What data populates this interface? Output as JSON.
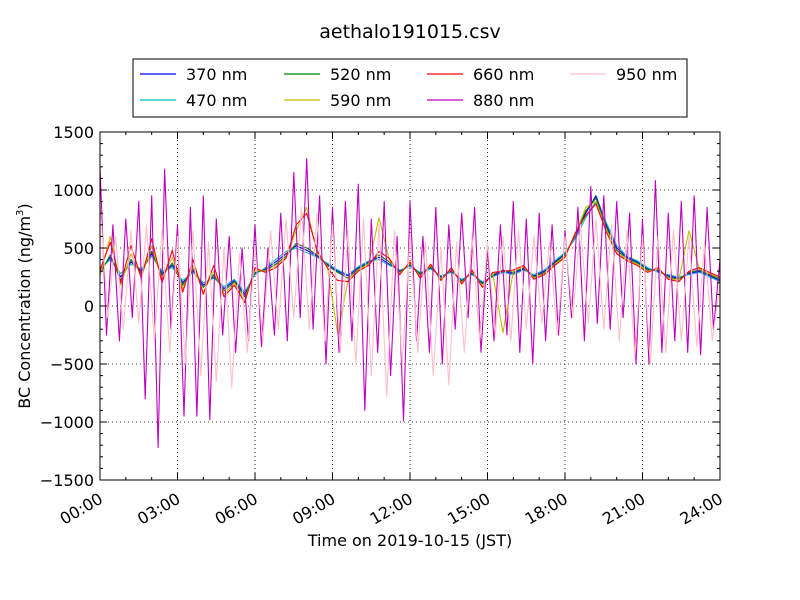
{
  "chart_data": {
    "type": "line",
    "title": "aethalo191015.csv",
    "xlabel": "Time on 2019-10-15 (JST)",
    "ylabel": "BC Concentration (ng/m³)",
    "ylabel_main": "BC Concentration (ng/m",
    "ylabel_sup": "3",
    "ylabel_end": ")",
    "xlim_hours": [
      0,
      24
    ],
    "ylim": [
      -1500,
      1500
    ],
    "x_ticks": [
      {
        "hour": 0,
        "label": "00:00"
      },
      {
        "hour": 3,
        "label": "03:00"
      },
      {
        "hour": 6,
        "label": "06:00"
      },
      {
        "hour": 9,
        "label": "09:00"
      },
      {
        "hour": 12,
        "label": "12:00"
      },
      {
        "hour": 15,
        "label": "15:00"
      },
      {
        "hour": 18,
        "label": "18:00"
      },
      {
        "hour": 21,
        "label": "21:00"
      },
      {
        "hour": 24,
        "label": "24:00"
      }
    ],
    "y_ticks": [
      {
        "value": 1500,
        "label": "1500"
      },
      {
        "value": 1000,
        "label": "1000"
      },
      {
        "value": 500,
        "label": "500"
      },
      {
        "value": 0,
        "label": "0"
      },
      {
        "value": -500,
        "label": "−500"
      },
      {
        "value": -1000,
        "label": "−1000"
      },
      {
        "value": -1500,
        "label": "−1500"
      }
    ],
    "grid": true,
    "legend_position": "top",
    "series": [
      {
        "name": "370 nm",
        "color": "#0000ff",
        "x": [
          0.0,
          0.4,
          0.8,
          1.2,
          1.6,
          2.0,
          2.4,
          2.8,
          3.2,
          3.6,
          4.0,
          4.4,
          4.8,
          5.2,
          5.6,
          6.0,
          6.4,
          6.8,
          7.2,
          7.6,
          8.0,
          8.4,
          8.8,
          9.2,
          9.6,
          10.0,
          10.4,
          10.8,
          11.2,
          11.6,
          12.0,
          12.4,
          12.8,
          13.2,
          13.6,
          14.0,
          14.4,
          14.8,
          15.2,
          15.6,
          16.0,
          16.4,
          16.8,
          17.2,
          17.6,
          18.0,
          18.4,
          18.8,
          19.2,
          19.6,
          20.0,
          20.4,
          20.8,
          21.2,
          21.6,
          22.0,
          22.4,
          22.8,
          23.2,
          23.6,
          24.0
        ],
        "y": [
          300,
          420,
          250,
          380,
          300,
          450,
          280,
          350,
          200,
          300,
          180,
          250,
          150,
          220,
          100,
          280,
          320,
          380,
          450,
          520,
          480,
          430,
          360,
          300,
          260,
          330,
          380,
          420,
          360,
          300,
          350,
          280,
          330,
          250,
          300,
          220,
          280,
          200,
          260,
          300,
          280,
          320,
          260,
          300,
          380,
          450,
          600,
          800,
          950,
          700,
          500,
          420,
          380,
          320,
          300,
          260,
          240,
          280,
          300,
          260,
          220
        ]
      },
      {
        "name": "470 nm",
        "color": "#00bfbf",
        "x": [
          0.0,
          0.4,
          0.8,
          1.2,
          1.6,
          2.0,
          2.4,
          2.8,
          3.2,
          3.6,
          4.0,
          4.4,
          4.8,
          5.2,
          5.6,
          6.0,
          6.4,
          6.8,
          7.2,
          7.6,
          8.0,
          8.4,
          8.8,
          9.2,
          9.6,
          10.0,
          10.4,
          10.8,
          11.2,
          11.6,
          12.0,
          12.4,
          12.8,
          13.2,
          13.6,
          14.0,
          14.4,
          14.8,
          15.2,
          15.6,
          16.0,
          16.4,
          16.8,
          17.2,
          17.6,
          18.0,
          18.4,
          18.8,
          19.2,
          19.6,
          20.0,
          20.4,
          20.8,
          21.2,
          21.6,
          22.0,
          22.4,
          22.8,
          23.2,
          23.6,
          24.0
        ],
        "y": [
          320,
          400,
          280,
          360,
          320,
          430,
          300,
          330,
          220,
          290,
          200,
          240,
          170,
          230,
          120,
          270,
          330,
          400,
          470,
          500,
          460,
          420,
          370,
          310,
          270,
          340,
          390,
          400,
          350,
          310,
          340,
          290,
          320,
          260,
          290,
          230,
          270,
          210,
          250,
          290,
          270,
          310,
          270,
          310,
          390,
          460,
          580,
          760,
          900,
          720,
          520,
          430,
          390,
          330,
          290,
          270,
          250,
          270,
          290,
          250,
          210
        ]
      },
      {
        "name": "520 nm",
        "color": "#008000",
        "x": [
          0.0,
          0.4,
          0.8,
          1.2,
          1.6,
          2.0,
          2.4,
          2.8,
          3.2,
          3.6,
          4.0,
          4.4,
          4.8,
          5.2,
          5.6,
          6.0,
          6.4,
          6.8,
          7.2,
          7.6,
          8.0,
          8.4,
          8.8,
          9.2,
          9.6,
          10.0,
          10.4,
          10.8,
          11.2,
          11.6,
          12.0,
          12.4,
          12.8,
          13.2,
          13.6,
          14.0,
          14.4,
          14.8,
          15.2,
          15.6,
          16.0,
          16.4,
          16.8,
          17.2,
          17.6,
          18.0,
          18.4,
          18.8,
          19.2,
          19.6,
          20.0,
          20.4,
          20.8,
          21.2,
          21.6,
          22.0,
          22.4,
          22.8,
          23.2,
          23.6,
          24.0
        ],
        "y": [
          280,
          440,
          220,
          400,
          280,
          470,
          260,
          370,
          180,
          320,
          160,
          270,
          130,
          210,
          80,
          290,
          310,
          360,
          430,
          540,
          500,
          440,
          350,
          290,
          240,
          320,
          370,
          440,
          380,
          290,
          360,
          270,
          340,
          240,
          310,
          210,
          290,
          190,
          270,
          310,
          290,
          330,
          250,
          290,
          370,
          440,
          610,
          820,
          930,
          680,
          480,
          410,
          370,
          310,
          310,
          250,
          230,
          290,
          310,
          270,
          230
        ]
      },
      {
        "name": "590 nm",
        "color": "#bfbf00",
        "x": [
          0.0,
          0.4,
          0.8,
          1.2,
          1.6,
          2.0,
          2.4,
          2.8,
          3.2,
          3.6,
          4.0,
          4.4,
          4.8,
          5.2,
          5.6,
          6.0,
          6.4,
          6.8,
          7.2,
          7.6,
          8.0,
          8.4,
          8.8,
          9.2,
          9.6,
          10.0,
          10.4,
          10.8,
          11.2,
          11.6,
          12.0,
          12.4,
          12.8,
          13.2,
          13.6,
          14.0,
          14.4,
          14.8,
          15.2,
          15.6,
          16.0,
          16.4,
          16.8,
          17.2,
          17.6,
          18.0,
          18.4,
          18.8,
          19.2,
          19.6,
          20.0,
          20.4,
          20.8,
          21.2,
          21.6,
          22.0,
          22.4,
          22.8,
          23.2,
          23.6,
          24.0
        ],
        "y": [
          260,
          600,
          180,
          450,
          250,
          520,
          220,
          420,
          150,
          350,
          120,
          300,
          100,
          200,
          50,
          310,
          300,
          350,
          420,
          650,
          850,
          460,
          340,
          -240,
          220,
          310,
          360,
          760,
          400,
          280,
          370,
          250,
          350,
          230,
          320,
          200,
          300,
          170,
          280,
          -230,
          300,
          340,
          240,
          280,
          360,
          430,
          620,
          850,
          900,
          660,
          460,
          400,
          360,
          300,
          320,
          240,
          220,
          650,
          320,
          280,
          240
        ]
      },
      {
        "name": "660 nm",
        "color": "#ff0000",
        "x": [
          0.0,
          0.4,
          0.8,
          1.2,
          1.6,
          2.0,
          2.4,
          2.8,
          3.2,
          3.6,
          4.0,
          4.4,
          4.8,
          5.2,
          5.6,
          6.0,
          6.4,
          6.8,
          7.2,
          7.6,
          8.0,
          8.4,
          8.8,
          9.2,
          9.6,
          10.0,
          10.4,
          10.8,
          11.2,
          11.6,
          12.0,
          12.4,
          12.8,
          13.2,
          13.6,
          14.0,
          14.4,
          14.8,
          15.2,
          15.6,
          16.0,
          16.4,
          16.8,
          17.2,
          17.6,
          18.0,
          18.4,
          18.8,
          19.2,
          19.6,
          20.0,
          20.4,
          20.8,
          21.2,
          21.6,
          22.0,
          22.4,
          22.8,
          23.2,
          23.6,
          24.0
        ],
        "y": [
          310,
          550,
          200,
          520,
          240,
          580,
          200,
          480,
          120,
          400,
          100,
          350,
          80,
          180,
          30,
          330,
          290,
          330,
          410,
          700,
          800,
          480,
          330,
          220,
          210,
          300,
          350,
          470,
          410,
          270,
          380,
          240,
          360,
          220,
          330,
          190,
          310,
          160,
          290,
          300,
          310,
          350,
          230,
          270,
          350,
          420,
          630,
          780,
          880,
          640,
          450,
          390,
          350,
          290,
          330,
          230,
          210,
          300,
          330,
          290,
          250
        ]
      },
      {
        "name": "880 nm",
        "color": "#bf00bf",
        "x": [
          0.0,
          0.25,
          0.5,
          0.75,
          1.0,
          1.25,
          1.5,
          1.75,
          2.0,
          2.25,
          2.5,
          2.75,
          3.0,
          3.25,
          3.5,
          3.75,
          4.0,
          4.25,
          4.5,
          4.75,
          5.0,
          5.25,
          5.5,
          5.75,
          6.0,
          6.25,
          6.5,
          6.75,
          7.0,
          7.25,
          7.5,
          7.75,
          8.0,
          8.25,
          8.5,
          8.75,
          9.0,
          9.25,
          9.5,
          9.75,
          10.0,
          10.25,
          10.5,
          10.75,
          11.0,
          11.25,
          11.5,
          11.75,
          12.0,
          12.25,
          12.5,
          12.75,
          13.0,
          13.25,
          13.5,
          13.75,
          14.0,
          14.25,
          14.5,
          14.75,
          15.0,
          15.25,
          15.5,
          15.75,
          16.0,
          16.25,
          16.5,
          16.75,
          17.0,
          17.25,
          17.5,
          17.75,
          18.0,
          18.25,
          18.5,
          18.75,
          19.0,
          19.25,
          19.5,
          19.75,
          20.0,
          20.25,
          20.5,
          20.75,
          21.0,
          21.25,
          21.5,
          21.75,
          22.0,
          22.25,
          22.5,
          22.75,
          23.0,
          23.25,
          23.5,
          23.75,
          24.0
        ],
        "y": [
          1200,
          -250,
          700,
          -300,
          750,
          -100,
          900,
          -800,
          950,
          -1220,
          1180,
          -200,
          700,
          -950,
          850,
          -950,
          950,
          -980,
          750,
          -250,
          600,
          -400,
          500,
          -300,
          700,
          -350,
          500,
          -250,
          800,
          -300,
          1150,
          -100,
          1270,
          -200,
          950,
          -500,
          850,
          -400,
          900,
          -300,
          1050,
          -900,
          750,
          -400,
          900,
          -600,
          600,
          -990,
          900,
          -300,
          600,
          -400,
          850,
          -500,
          700,
          -200,
          800,
          -100,
          850,
          -400,
          500,
          -300,
          700,
          -250,
          900,
          -400,
          750,
          -500,
          800,
          -300,
          700,
          -250,
          650,
          -100,
          850,
          -300,
          1030,
          -150,
          950,
          -200,
          900,
          -100,
          800,
          -500,
          750,
          -500,
          1080,
          -400,
          800,
          -300,
          900,
          -400,
          950,
          -420,
          850,
          -200,
          400
        ]
      },
      {
        "name": "950 nm",
        "color": "#ffc0cb",
        "x": [
          0.0,
          0.3,
          0.6,
          0.9,
          1.2,
          1.5,
          1.8,
          2.1,
          2.4,
          2.7,
          3.0,
          3.3,
          3.6,
          3.9,
          4.2,
          4.5,
          4.8,
          5.1,
          5.4,
          5.7,
          6.0,
          6.3,
          6.6,
          6.9,
          7.2,
          7.5,
          7.8,
          8.1,
          8.4,
          8.7,
          9.0,
          9.3,
          9.6,
          9.9,
          10.2,
          10.5,
          10.8,
          11.1,
          11.4,
          11.7,
          12.0,
          12.3,
          12.6,
          12.9,
          13.2,
          13.5,
          13.8,
          14.1,
          14.4,
          14.7,
          15.0,
          15.3,
          15.6,
          15.9,
          16.2,
          16.5,
          16.8,
          17.1,
          17.4,
          17.7,
          18.0,
          18.3,
          18.6,
          18.9,
          19.2,
          19.5,
          19.8,
          20.1,
          20.4,
          20.7,
          21.0,
          21.3,
          21.6,
          21.9,
          22.2,
          22.5,
          22.8,
          23.1,
          23.4,
          23.7,
          24.0
        ],
        "y": [
          900,
          -100,
          600,
          -200,
          650,
          -150,
          700,
          -300,
          650,
          -400,
          600,
          -500,
          650,
          -600,
          550,
          -650,
          500,
          -700,
          450,
          -400,
          500,
          -300,
          650,
          -200,
          750,
          -100,
          850,
          -200,
          800,
          -300,
          700,
          -400,
          650,
          -500,
          750,
          -600,
          700,
          -780,
          650,
          -500,
          600,
          -400,
          550,
          -600,
          500,
          -680,
          550,
          -400,
          600,
          -300,
          550,
          -250,
          600,
          -300,
          650,
          -200,
          600,
          -150,
          550,
          -250,
          600,
          -100,
          700,
          -150,
          750,
          -200,
          700,
          -300,
          650,
          -450,
          600,
          -500,
          600,
          -400,
          650,
          -300,
          600,
          -350,
          550,
          -300,
          200
        ]
      }
    ]
  }
}
